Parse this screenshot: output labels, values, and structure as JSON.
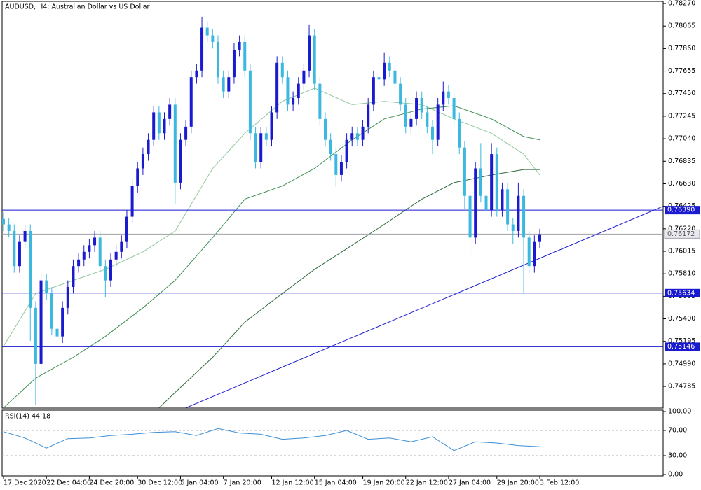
{
  "chart_data": {
    "type": "candlestick",
    "title": "AUDUSD, H4:  Australian Dollar vs US Dollar",
    "up_color": "#1a1ad0",
    "down_color": "#3cb8e0",
    "ylim": [
      0.74588,
      0.78302
    ],
    "yticks": [
      {
        "value": 0.7827,
        "label": "0.78270"
      },
      0.78065,
      {
        "value": 0.7786,
        "label": "0.77860"
      },
      0.77655,
      {
        "value": 0.7745,
        "label": "0.77450"
      },
      0.77245,
      {
        "value": 0.7704,
        "label": "0.77040"
      },
      0.76835,
      {
        "value": 0.7663,
        "label": "0.76630"
      },
      0.76425,
      {
        "value": 0.7622,
        "label": "0.76220"
      },
      0.76015,
      {
        "value": 0.7581,
        "label": "0.75810"
      },
      0.75605,
      {
        "value": 0.754,
        "label": "0.75400"
      },
      0.75195,
      {
        "value": 0.7499,
        "label": "0.74990"
      },
      0.74785
    ],
    "xticks": [
      {
        "value": 0,
        "label": "17 Dec 2020"
      },
      {
        "value": 8,
        "label": "22 Dec 04:00"
      },
      {
        "value": 16,
        "label": "24 Dec 20:00"
      },
      {
        "value": 25,
        "label": "30 Dec 12:00"
      },
      {
        "value": 33,
        "label": "5 Jan 04:00"
      },
      {
        "value": 41,
        "label": "7 Jan 20:00"
      },
      {
        "value": 50,
        "label": "12 Jan 12:00"
      },
      {
        "value": 58,
        "label": "15 Jan 04:00"
      },
      {
        "value": 67,
        "label": "19 Jan 20:00"
      },
      {
        "value": 75,
        "label": "22 Jan 12:00"
      },
      {
        "value": 83,
        "label": "27 Jan 04:00"
      },
      {
        "value": 92,
        "label": "29 Jan 20:00"
      },
      {
        "value": 100,
        "label": "3 Feb 12:00"
      }
    ],
    "ohlc": [
      [
        0.7631,
        0.7637,
        0.762,
        0.7626
      ],
      [
        0.7626,
        0.7632,
        0.7614,
        0.762
      ],
      [
        0.762,
        0.7626,
        0.7582,
        0.7588
      ],
      [
        0.7588,
        0.7616,
        0.7582,
        0.761
      ],
      [
        0.761,
        0.7626,
        0.7604,
        0.762
      ],
      [
        0.762,
        0.7626,
        0.752,
        0.755
      ],
      [
        0.755,
        0.7556,
        0.7462,
        0.7499
      ],
      [
        0.7499,
        0.7581,
        0.7493,
        0.7575
      ],
      [
        0.7575,
        0.7581,
        0.7557,
        0.7563
      ],
      [
        0.7563,
        0.7569,
        0.7525,
        0.7531
      ],
      [
        0.7531,
        0.7537,
        0.7516,
        0.7524
      ],
      [
        0.7524,
        0.7556,
        0.7518,
        0.755
      ],
      [
        0.755,
        0.7575,
        0.7544,
        0.7569
      ],
      [
        0.7569,
        0.7594,
        0.7563,
        0.7588
      ],
      [
        0.7588,
        0.76,
        0.7582,
        0.7594
      ],
      [
        0.7594,
        0.7607,
        0.7588,
        0.7601
      ],
      [
        0.7601,
        0.7613,
        0.7595,
        0.7607
      ],
      [
        0.7607,
        0.762,
        0.7601,
        0.7614
      ],
      [
        0.7614,
        0.762,
        0.7582,
        0.7588
      ],
      [
        0.7588,
        0.7594,
        0.756,
        0.7575
      ],
      [
        0.7575,
        0.76,
        0.7569,
        0.7594
      ],
      [
        0.7594,
        0.7607,
        0.7588,
        0.7601
      ],
      [
        0.7601,
        0.7616,
        0.7595,
        0.761
      ],
      [
        0.761,
        0.7639,
        0.7604,
        0.7633
      ],
      [
        0.7633,
        0.7667,
        0.7627,
        0.7661
      ],
      [
        0.7661,
        0.7683,
        0.7655,
        0.7677
      ],
      [
        0.7677,
        0.7696,
        0.7671,
        0.769
      ],
      [
        0.769,
        0.7709,
        0.7684,
        0.7703
      ],
      [
        0.7703,
        0.7734,
        0.7697,
        0.7728
      ],
      [
        0.7728,
        0.7734,
        0.7703,
        0.7709
      ],
      [
        0.7709,
        0.7728,
        0.7703,
        0.7722
      ],
      [
        0.7722,
        0.7741,
        0.7716,
        0.7735
      ],
      [
        0.7735,
        0.7741,
        0.7645,
        0.7664
      ],
      [
        0.7664,
        0.7709,
        0.7658,
        0.7703
      ],
      [
        0.7703,
        0.7721,
        0.7697,
        0.7715
      ],
      [
        0.7715,
        0.7766,
        0.7709,
        0.776
      ],
      [
        0.776,
        0.7772,
        0.7754,
        0.7766
      ],
      [
        0.7766,
        0.7815,
        0.776,
        0.7805
      ],
      [
        0.7805,
        0.7811,
        0.7792,
        0.7798
      ],
      [
        0.7798,
        0.7804,
        0.7786,
        0.7792
      ],
      [
        0.7792,
        0.7798,
        0.7754,
        0.776
      ],
      [
        0.776,
        0.7766,
        0.7741,
        0.7747
      ],
      [
        0.7747,
        0.7766,
        0.7741,
        0.776
      ],
      [
        0.776,
        0.7791,
        0.7754,
        0.7785
      ],
      [
        0.7785,
        0.7798,
        0.7779,
        0.7792
      ],
      [
        0.7792,
        0.7798,
        0.776,
        0.7766
      ],
      [
        0.7766,
        0.7772,
        0.7703,
        0.7709
      ],
      [
        0.7709,
        0.7715,
        0.7677,
        0.7683
      ],
      [
        0.7683,
        0.7715,
        0.7677,
        0.7709
      ],
      [
        0.7709,
        0.7715,
        0.7697,
        0.7703
      ],
      [
        0.7703,
        0.7734,
        0.7697,
        0.7728
      ],
      [
        0.7728,
        0.7779,
        0.7722,
        0.7773
      ],
      [
        0.7773,
        0.7779,
        0.7754,
        0.776
      ],
      [
        0.776,
        0.7766,
        0.7729,
        0.7735
      ],
      [
        0.7735,
        0.7747,
        0.7729,
        0.7741
      ],
      [
        0.7741,
        0.776,
        0.7735,
        0.7754
      ],
      [
        0.7754,
        0.7772,
        0.7748,
        0.7766
      ],
      [
        0.7766,
        0.7808,
        0.776,
        0.7798
      ],
      [
        0.7798,
        0.7804,
        0.7748,
        0.7754
      ],
      [
        0.7754,
        0.776,
        0.7716,
        0.7722
      ],
      [
        0.7722,
        0.7728,
        0.7697,
        0.7703
      ],
      [
        0.7703,
        0.7709,
        0.7684,
        0.769
      ],
      [
        0.769,
        0.7696,
        0.766,
        0.7671
      ],
      [
        0.7671,
        0.7689,
        0.7665,
        0.7683
      ],
      [
        0.7683,
        0.7709,
        0.7677,
        0.7703
      ],
      [
        0.7703,
        0.7715,
        0.7697,
        0.7709
      ],
      [
        0.7709,
        0.7715,
        0.7697,
        0.7703
      ],
      [
        0.7703,
        0.7721,
        0.7697,
        0.7715
      ],
      [
        0.7715,
        0.7741,
        0.7709,
        0.7735
      ],
      [
        0.7735,
        0.7766,
        0.7729,
        0.776
      ],
      [
        0.776,
        0.7766,
        0.7752,
        0.7758
      ],
      [
        0.7758,
        0.7782,
        0.7752,
        0.7773
      ],
      [
        0.7773,
        0.7779,
        0.776,
        0.7766
      ],
      [
        0.7766,
        0.7772,
        0.7748,
        0.7754
      ],
      [
        0.7754,
        0.776,
        0.7729,
        0.7735
      ],
      [
        0.7735,
        0.7741,
        0.7709,
        0.7715
      ],
      [
        0.7715,
        0.7728,
        0.7709,
        0.7722
      ],
      [
        0.7722,
        0.7747,
        0.7716,
        0.7741
      ],
      [
        0.7741,
        0.7747,
        0.7722,
        0.7728
      ],
      [
        0.7728,
        0.7734,
        0.7709,
        0.7715
      ],
      [
        0.7715,
        0.7721,
        0.769,
        0.7703
      ],
      [
        0.7703,
        0.7741,
        0.7697,
        0.7735
      ],
      [
        0.7735,
        0.7756,
        0.7729,
        0.7747
      ],
      [
        0.7747,
        0.7753,
        0.7735,
        0.7741
      ],
      [
        0.7741,
        0.7747,
        0.7716,
        0.7722
      ],
      [
        0.7722,
        0.7728,
        0.769,
        0.7696
      ],
      [
        0.7696,
        0.7702,
        0.764,
        0.7652
      ],
      [
        0.7652,
        0.7658,
        0.7595,
        0.7614
      ],
      [
        0.7614,
        0.7683,
        0.7608,
        0.7677
      ],
      [
        0.7677,
        0.77,
        0.7646,
        0.7652
      ],
      [
        0.7652,
        0.7658,
        0.7633,
        0.7639
      ],
      [
        0.7639,
        0.77,
        0.7633,
        0.769
      ],
      [
        0.769,
        0.7696,
        0.7633,
        0.7639
      ],
      [
        0.7639,
        0.7664,
        0.7633,
        0.7658
      ],
      [
        0.7658,
        0.7664,
        0.762,
        0.7626
      ],
      [
        0.7626,
        0.7632,
        0.7608,
        0.762
      ],
      [
        0.762,
        0.7664,
        0.7614,
        0.7652
      ],
      [
        0.7652,
        0.7658,
        0.7563,
        0.7614
      ],
      [
        0.7614,
        0.762,
        0.7582,
        0.7588
      ],
      [
        0.7588,
        0.7616,
        0.7582,
        0.761
      ],
      [
        0.761,
        0.7622,
        0.7604,
        0.7617
      ]
    ],
    "series": [
      {
        "color": "#8fc79a",
        "x": [
          0,
          6,
          13,
          19,
          26,
          32,
          39,
          45,
          52,
          58,
          65,
          71,
          78,
          84,
          91,
          97,
          100
        ],
        "values": [
          0.7515,
          0.7563,
          0.7575,
          0.7585,
          0.7601,
          0.762,
          0.7677,
          0.7709,
          0.7738,
          0.775,
          0.7735,
          0.7738,
          0.7735,
          0.7722,
          0.7709,
          0.769,
          0.7671
        ]
      },
      {
        "color": "#3f8f55",
        "x": [
          0,
          6,
          13,
          19,
          26,
          32,
          39,
          45,
          52,
          58,
          65,
          71,
          78,
          84,
          91,
          97,
          100
        ],
        "values": [
          0.7459,
          0.7486,
          0.7505,
          0.7524,
          0.755,
          0.7575,
          0.7614,
          0.7649,
          0.7661,
          0.7677,
          0.7703,
          0.7722,
          0.7731,
          0.7734,
          0.7722,
          0.7706,
          0.7703
        ]
      },
      {
        "color": "#2e6b3a",
        "x": [
          29,
          32,
          39,
          45,
          52,
          58,
          65,
          71,
          78,
          84,
          91,
          97,
          100
        ],
        "values": [
          0.7459,
          0.7473,
          0.7505,
          0.7537,
          0.7563,
          0.7585,
          0.7607,
          0.7626,
          0.7649,
          0.7664,
          0.7671,
          0.7676,
          0.7676
        ]
      }
    ],
    "hlines": [
      {
        "value": 0.7639,
        "label": "0.76390"
      },
      0.75634,
      0.75146
    ],
    "hline_color": "#1a1ad0",
    "current_price": 0.76172,
    "trendline": {
      "x": [
        34,
        123
      ],
      "values": [
        0.7459,
        0.76425
      ],
      "color": "#1a1ad0"
    },
    "rsi": {
      "label": "RSI(14) 44.18",
      "color": "#3c8fd6",
      "ylim": [
        0,
        100
      ],
      "yticks": [
        {
          "value": 100,
          "label": "100.00"
        },
        {
          "value": 70,
          "label": "70.00"
        },
        {
          "value": 30,
          "label": "30.00"
        },
        {
          "value": 0,
          "label": "0.00"
        }
      ],
      "levels": [
        70,
        30
      ],
      "x": [
        0,
        4,
        8,
        12,
        16,
        20,
        24,
        28,
        32,
        36,
        40,
        44,
        48,
        52,
        56,
        60,
        64,
        68,
        72,
        76,
        80,
        84,
        88,
        92,
        96,
        100
      ],
      "values": [
        68,
        58,
        42,
        57,
        58,
        62,
        64,
        67,
        68,
        62,
        73,
        66,
        64,
        56,
        58,
        62,
        70,
        56,
        58,
        52,
        60,
        38,
        52,
        50,
        46,
        44.18
      ]
    }
  }
}
